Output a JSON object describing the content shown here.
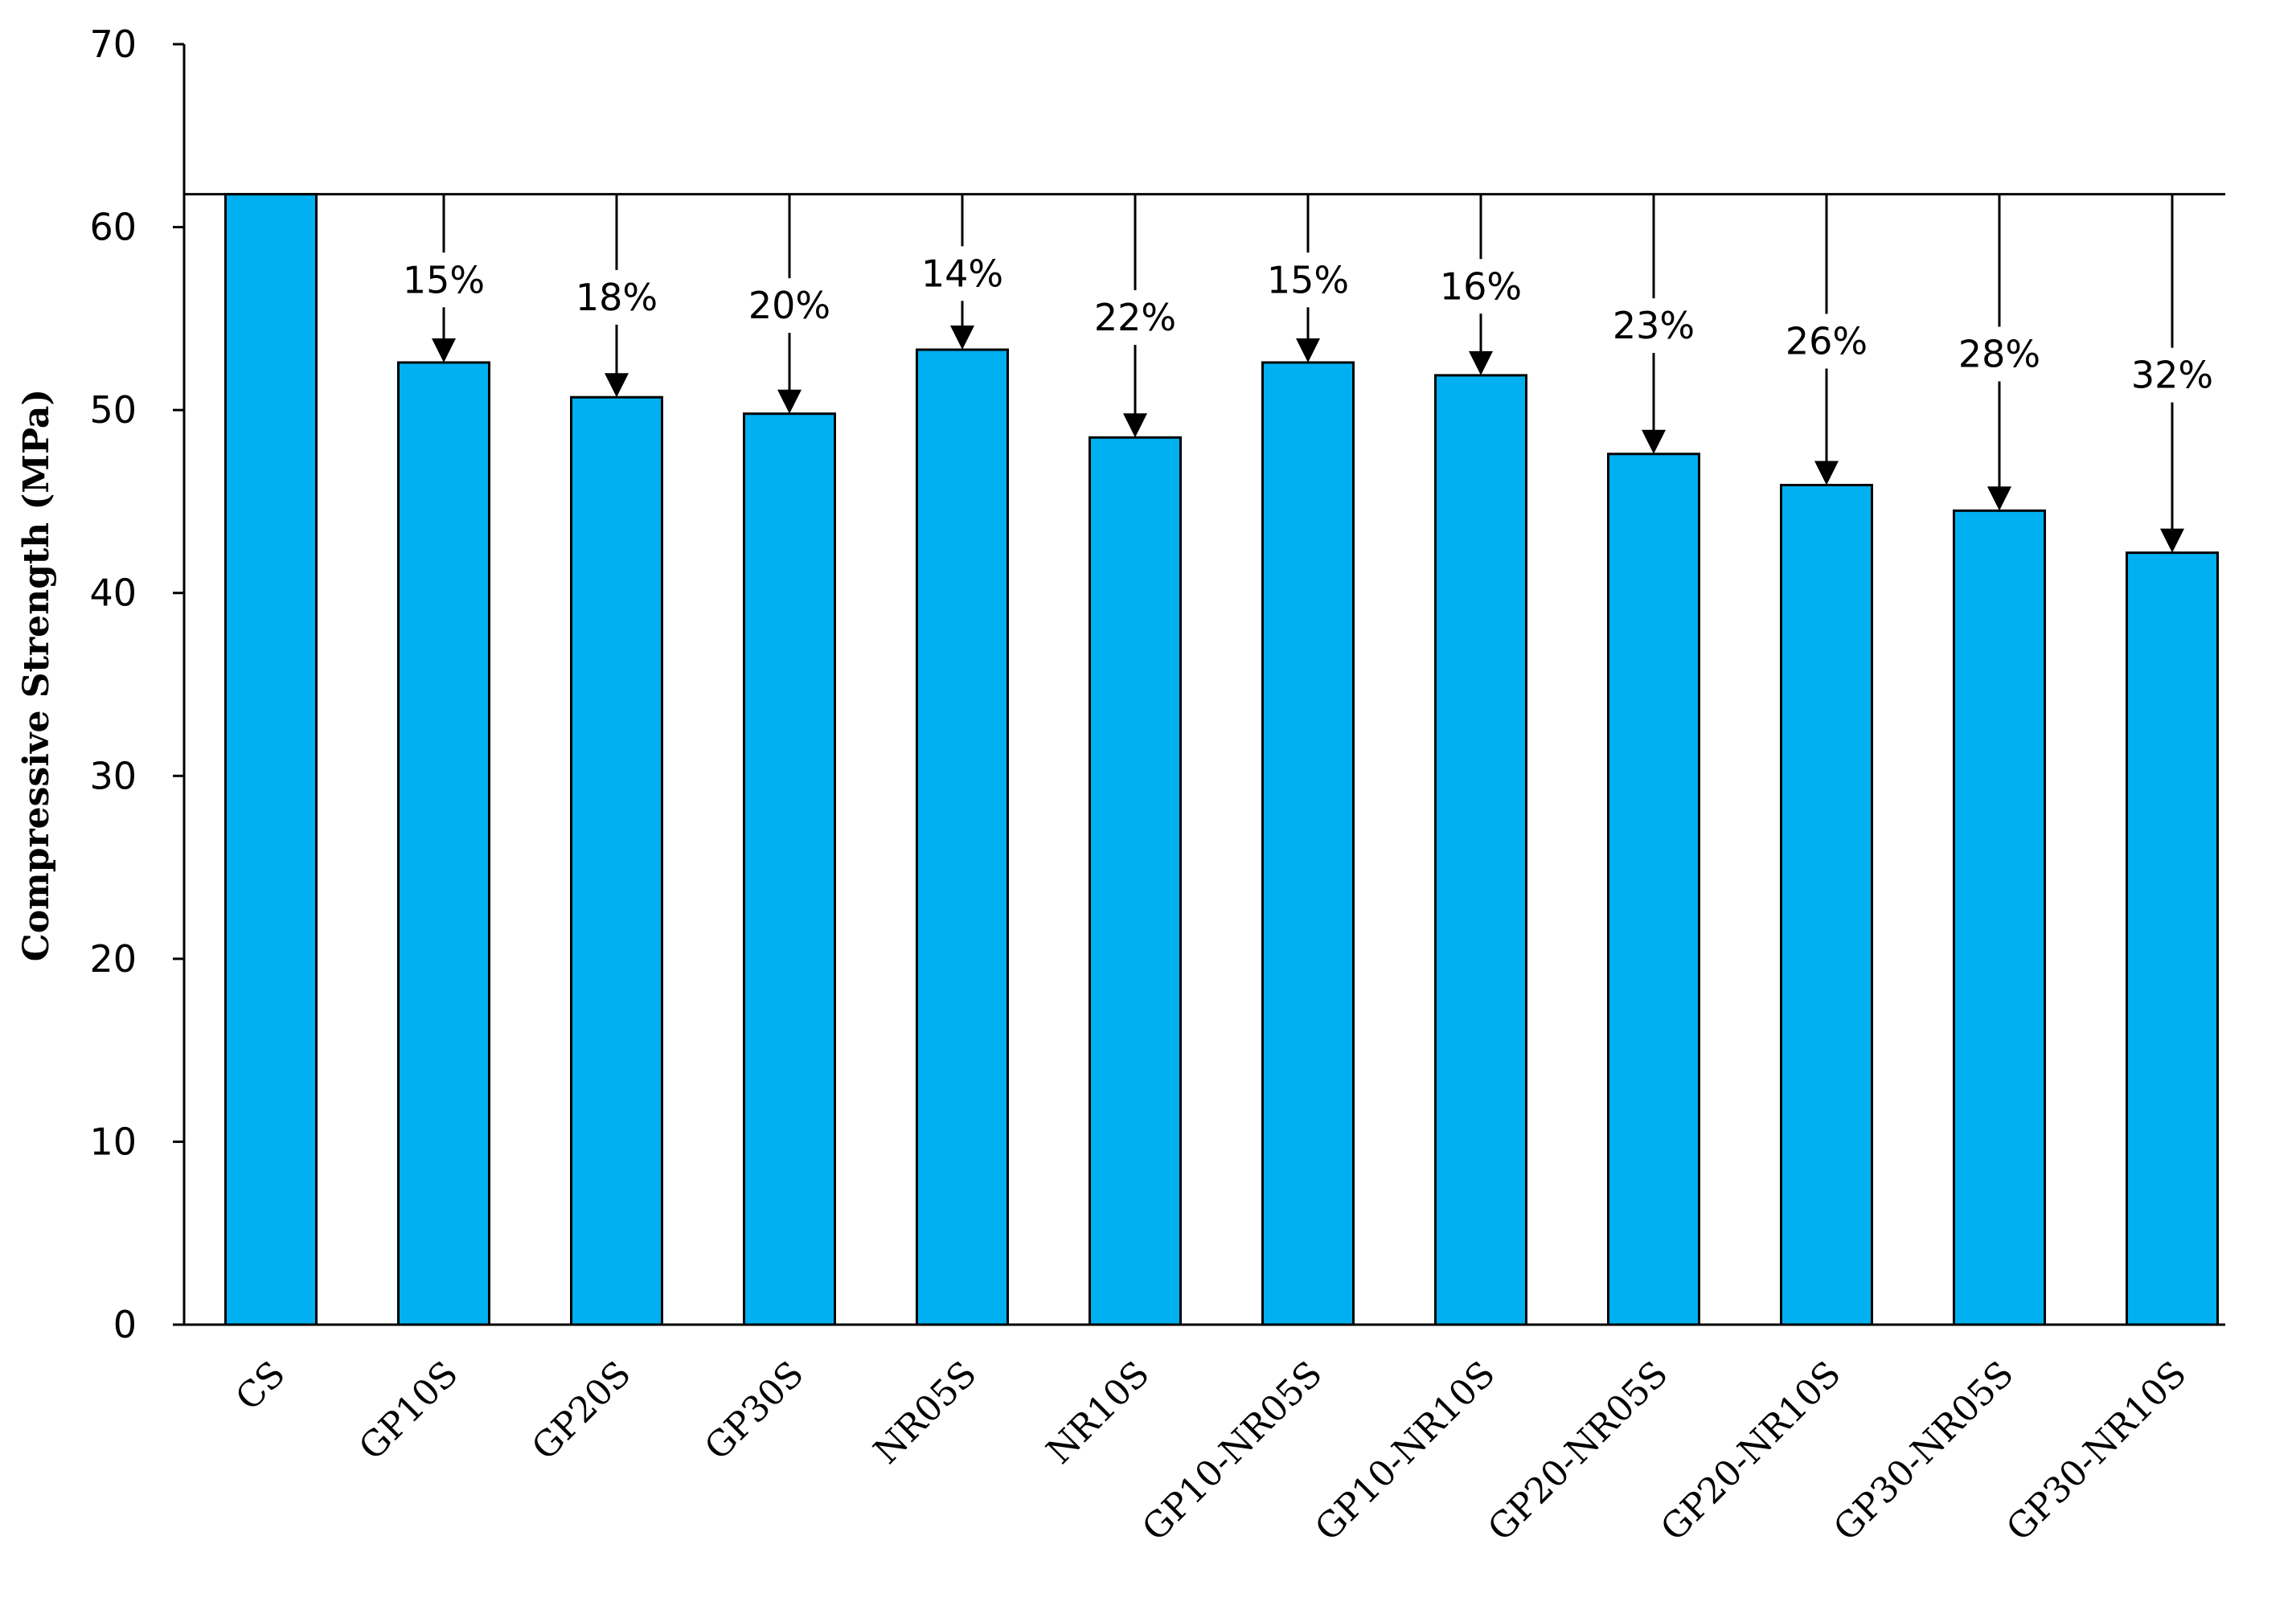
{
  "chart_data": {
    "type": "bar",
    "title": "",
    "xlabel": "",
    "ylabel": "Compressive Strength (MPa)",
    "ylim": [
      0,
      70
    ],
    "yticks": [
      0,
      10,
      20,
      30,
      40,
      50,
      60,
      70
    ],
    "categories": [
      "CS",
      "GP10S",
      "GP20S",
      "GP30S",
      "NR05S",
      "NR10S",
      "GP10-NR05S",
      "GP10-NR10S",
      "GP20-NR05S",
      "GP20-NR10S",
      "GP30-NR05S",
      "GP30-NR10S"
    ],
    "values": [
      61.8,
      52.6,
      50.7,
      49.8,
      53.3,
      48.5,
      52.6,
      51.9,
      47.6,
      45.9,
      44.5,
      42.2
    ],
    "reduction_labels": [
      "",
      "15%",
      "18%",
      "20%",
      "14%",
      "22%",
      "15%",
      "16%",
      "23%",
      "26%",
      "28%",
      "32%"
    ],
    "reference_value": 61.8,
    "bar_color": "#00b0f0",
    "grid": false
  }
}
